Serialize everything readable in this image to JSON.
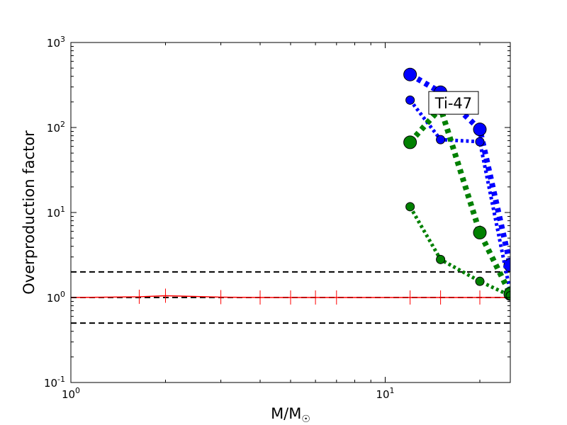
{
  "chart_data": {
    "type": "line",
    "title": "",
    "xlabel": "M/M",
    "xlabel_sub": "☉",
    "ylabel": "Overproduction factor",
    "xscale": "log",
    "yscale": "log",
    "xlim": [
      1,
      25
    ],
    "ylim": [
      0.1,
      1000
    ],
    "x_ticks": [
      {
        "value": 1,
        "base": "10",
        "exp": "0"
      },
      {
        "value": 10,
        "base": "10",
        "exp": "1"
      }
    ],
    "y_ticks": [
      {
        "value": 0.1,
        "base": "10",
        "exp": "-1"
      },
      {
        "value": 1,
        "base": "10",
        "exp": "0"
      },
      {
        "value": 10,
        "base": "10",
        "exp": "1"
      },
      {
        "value": 100,
        "base": "10",
        "exp": "2"
      },
      {
        "value": 1000,
        "base": "10",
        "exp": "3"
      }
    ],
    "grid": false,
    "legend": "none",
    "annotation": {
      "text": "Ti-47",
      "x": 16.5,
      "y": 195
    },
    "reference_lines": [
      {
        "y": 2,
        "color": "#000000",
        "style": "dashed"
      },
      {
        "y": 1,
        "color": "#000000",
        "style": "dashed"
      },
      {
        "y": 0.5,
        "color": "#000000",
        "style": "dashed"
      }
    ],
    "series": [
      {
        "color": "#ff0000",
        "style": "solid",
        "width": 1.5,
        "marker": "vtick",
        "marker_size": 0,
        "x": [
          1,
          1.65,
          2,
          3,
          4,
          5,
          6,
          7,
          12,
          15,
          20,
          25
        ],
        "y": [
          1.0,
          1.02,
          1.05,
          1.01,
          1.0,
          1.0,
          1.0,
          1.0,
          1.0,
          1.0,
          1.0,
          1.0
        ]
      },
      {
        "color": "#0000ff",
        "style": "dotted",
        "width": 8,
        "marker": "circle",
        "marker_size": 9,
        "x": [
          12,
          15,
          20,
          25
        ],
        "y": [
          420,
          260,
          95,
          2.4
        ]
      },
      {
        "color": "#0000ff",
        "style": "dotted",
        "width": 5,
        "marker": "circle",
        "marker_size": 6,
        "x": [
          12,
          15,
          20,
          25
        ],
        "y": [
          210,
          72,
          68,
          1.15
        ]
      },
      {
        "color": "#008000",
        "style": "dotted",
        "width": 8,
        "marker": "circle",
        "marker_size": 9,
        "x": [
          12,
          15,
          20,
          25
        ],
        "y": [
          67,
          170,
          5.8,
          1.1
        ]
      },
      {
        "color": "#008000",
        "style": "dotted",
        "width": 5,
        "marker": "circle",
        "marker_size": 6,
        "x": [
          12,
          15,
          20,
          25
        ],
        "y": [
          11.7,
          2.8,
          1.55,
          1.05
        ]
      }
    ]
  }
}
